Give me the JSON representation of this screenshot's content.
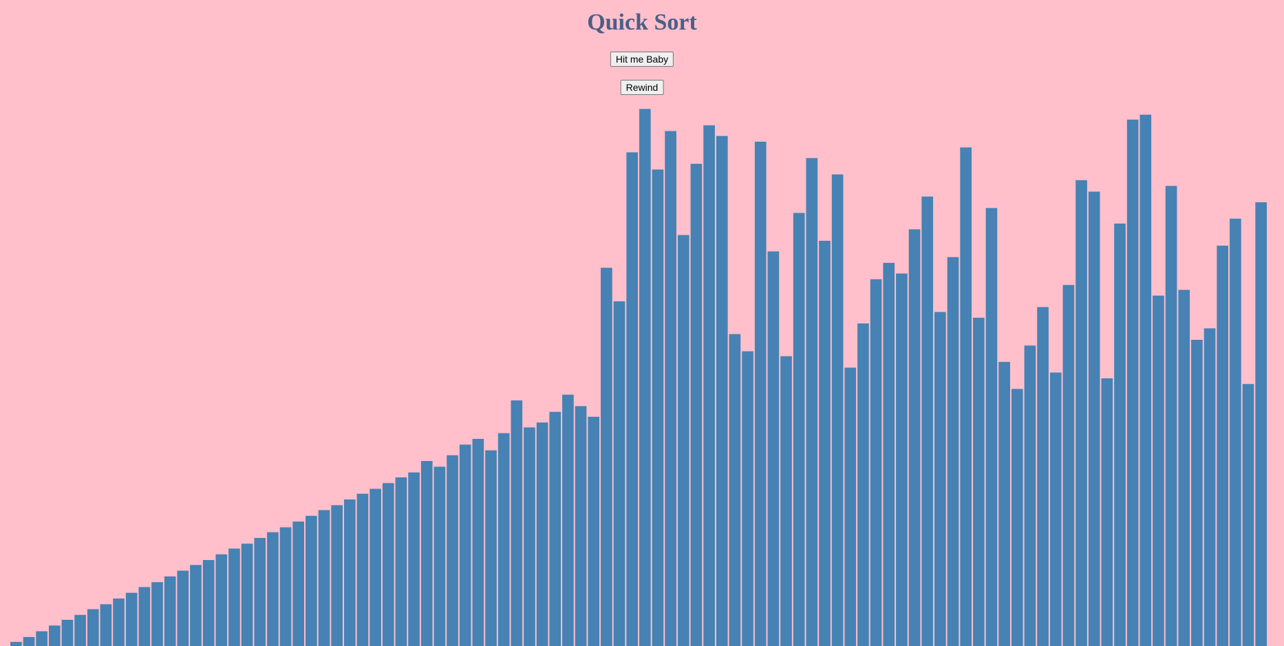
{
  "header": {
    "title": "Quick Sort"
  },
  "buttons": [
    "Hit me Baby",
    "Rewind"
  ],
  "chart_data": {
    "type": "bar",
    "color": "#4682b4",
    "values": [
      5,
      11,
      18,
      25,
      32,
      38,
      45,
      51,
      58,
      65,
      72,
      78,
      85,
      92,
      99,
      105,
      112,
      119,
      125,
      132,
      139,
      145,
      152,
      159,
      166,
      172,
      179,
      186,
      192,
      199,
      206,
      212,
      226,
      219,
      233,
      246,
      253,
      239,
      260,
      300,
      267,
      273,
      286,
      307,
      293,
      280,
      462,
      421,
      603,
      656,
      582,
      629,
      502,
      589,
      636,
      623,
      381,
      360,
      616,
      482,
      354,
      529,
      596,
      495,
      576,
      340,
      394,
      448,
      468,
      455,
      509,
      549,
      408,
      475,
      609,
      401,
      535,
      347,
      314,
      367,
      414,
      334,
      441,
      569,
      555,
      327,
      516,
      643,
      649,
      428,
      562,
      435,
      374,
      388,
      489,
      522,
      320,
      542
    ]
  }
}
